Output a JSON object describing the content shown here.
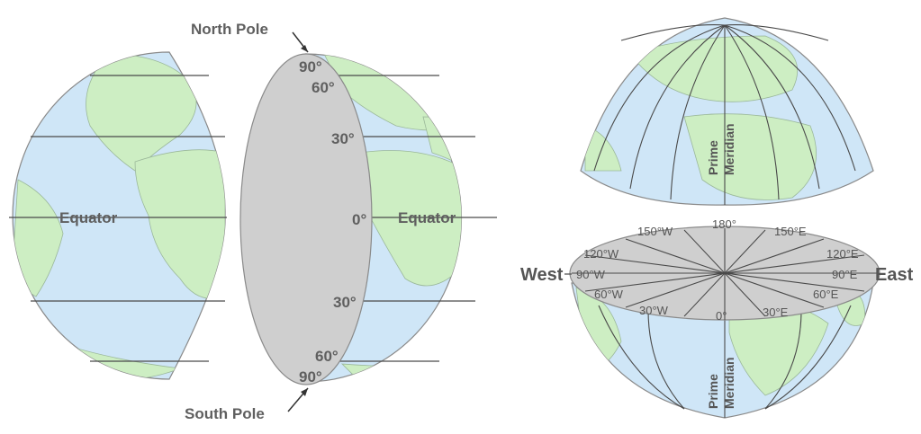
{
  "left_diagram": {
    "north_pole": "North Pole",
    "south_pole": "South Pole",
    "equator_left": "Equator",
    "equator_right": "Equator",
    "latitudes": [
      "90°",
      "60°",
      "30°",
      "0°",
      "30°",
      "60°",
      "90°"
    ]
  },
  "right_diagram": {
    "prime_meridian_top_1": "Prime",
    "prime_meridian_top_2": "Meridian",
    "prime_meridian_bottom_1": "Prime",
    "prime_meridian_bottom_2": "Meridian",
    "west": "West",
    "east": "East",
    "longitudes": [
      "180°",
      "150°W",
      "150°E",
      "120°W",
      "120°E",
      "90°W",
      "90°E",
      "60°W",
      "60°E",
      "30°W",
      "30°E",
      "0°"
    ]
  },
  "colors": {
    "ocean": "#cfe6f7",
    "land": "#cdeec3",
    "cut_face": "#cfcfcf",
    "lines": "#4a4a4a"
  }
}
